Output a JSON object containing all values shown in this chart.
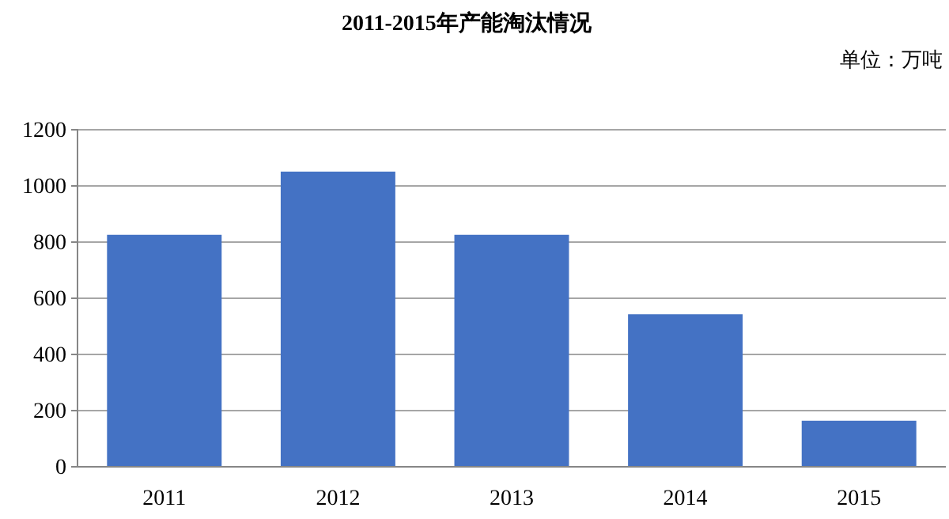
{
  "chart_data": {
    "type": "bar",
    "title": "2011-2015年产能淘汰情况",
    "subtitle": "单位：万吨",
    "categories": [
      "2011",
      "2012",
      "2013",
      "2014",
      "2015"
    ],
    "values": [
      826,
      1051,
      826,
      543,
      164
    ],
    "color": "#4472c4",
    "ylim": [
      0,
      1200
    ],
    "yticks": [
      0,
      200,
      400,
      600,
      800,
      1000,
      1200
    ],
    "grid": "y"
  }
}
